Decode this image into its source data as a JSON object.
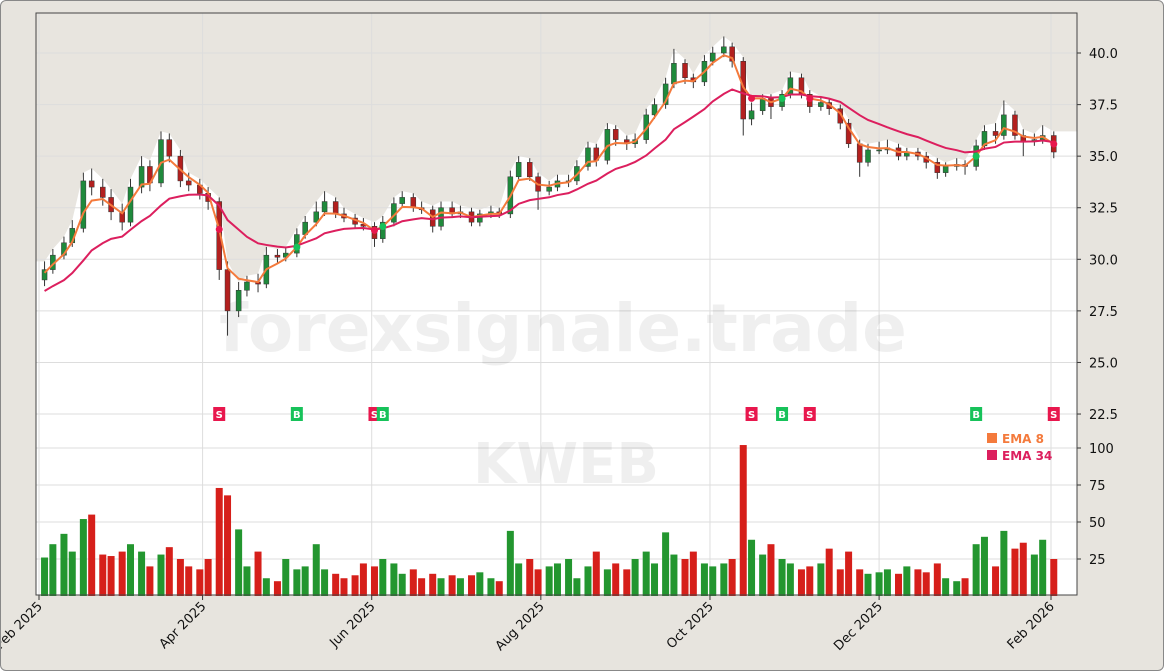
{
  "watermark": {
    "site": "forexsignale.trade",
    "symbol": "KWEB"
  },
  "colors": {
    "ema8": "#f47a3c",
    "ema34": "#dc1f5e",
    "up": "#1f8a3c",
    "down": "#b3201f",
    "vol_up": "#23962f",
    "vol_down": "#d61f1a",
    "buy": "#17c25a",
    "sell": "#e8174d"
  },
  "legend": [
    {
      "label": "EMA 8",
      "color": "#f47a3c",
      "period": 8
    },
    {
      "label": "EMA 34",
      "color": "#dc1f5e",
      "period": 34
    }
  ],
  "chart_data": {
    "type": "candlestick",
    "price_axis": {
      "ticks": [
        "22.5",
        "25.0",
        "27.5",
        "30.0",
        "32.5",
        "35.0",
        "37.5",
        "40.0"
      ],
      "range": [
        22.5,
        40.7
      ],
      "side": "right"
    },
    "volume_axis": {
      "ticks": [
        "25",
        "50",
        "75",
        "100"
      ],
      "range": [
        0,
        110
      ],
      "side": "right"
    },
    "x_ticks": [
      {
        "date": "2025-02-01",
        "label": "Feb 2025"
      },
      {
        "date": "2025-04-01",
        "label": "Apr 2025"
      },
      {
        "date": "2025-06-01",
        "label": "Jun 2025"
      },
      {
        "date": "2025-08-01",
        "label": "Aug 2025"
      },
      {
        "date": "2025-10-01",
        "label": "Oct 2025"
      },
      {
        "date": "2025-12-01",
        "label": "Dec 2025"
      },
      {
        "date": "2026-02-01",
        "label": "Feb 2026"
      }
    ],
    "grid": true,
    "legend_placement": "lower-right",
    "candles_columns": [
      "date",
      "open",
      "high",
      "low",
      "close",
      "volume"
    ],
    "candles": [
      [
        "2025-02-03",
        29.0,
        29.9,
        28.7,
        29.5,
        26
      ],
      [
        "2025-02-06",
        29.5,
        30.5,
        29.3,
        30.2,
        35
      ],
      [
        "2025-02-10",
        30.2,
        31.1,
        30.0,
        30.8,
        42
      ],
      [
        "2025-02-13",
        30.8,
        31.9,
        30.6,
        31.5,
        30
      ],
      [
        "2025-02-17",
        31.5,
        34.2,
        31.3,
        33.8,
        52
      ],
      [
        "2025-02-20",
        33.8,
        34.4,
        33.1,
        33.5,
        55
      ],
      [
        "2025-02-24",
        33.5,
        33.9,
        32.6,
        33.0,
        28
      ],
      [
        "2025-02-27",
        33.0,
        33.4,
        31.9,
        32.3,
        27
      ],
      [
        "2025-03-03",
        32.3,
        32.7,
        31.4,
        31.8,
        30
      ],
      [
        "2025-03-06",
        31.8,
        33.9,
        31.6,
        33.5,
        35
      ],
      [
        "2025-03-10",
        33.5,
        35.0,
        33.2,
        34.5,
        30
      ],
      [
        "2025-03-13",
        34.5,
        34.8,
        33.3,
        33.7,
        20
      ],
      [
        "2025-03-17",
        33.7,
        36.2,
        33.5,
        35.8,
        28
      ],
      [
        "2025-03-20",
        35.8,
        36.1,
        34.7,
        35.0,
        33
      ],
      [
        "2025-03-24",
        35.0,
        35.3,
        33.5,
        33.8,
        25
      ],
      [
        "2025-03-27",
        33.8,
        34.2,
        33.3,
        33.6,
        20
      ],
      [
        "2025-03-31",
        33.6,
        33.9,
        32.9,
        33.2,
        18
      ],
      [
        "2025-04-03",
        33.2,
        33.5,
        32.4,
        32.8,
        25
      ],
      [
        "2025-04-07",
        32.8,
        33.0,
        29.0,
        29.5,
        73
      ],
      [
        "2025-04-10",
        29.5,
        29.9,
        26.3,
        27.5,
        68
      ],
      [
        "2025-04-14",
        27.5,
        28.9,
        27.2,
        28.5,
        45
      ],
      [
        "2025-04-17",
        28.5,
        29.2,
        28.2,
        28.9,
        20
      ],
      [
        "2025-04-21",
        28.9,
        29.3,
        28.4,
        28.8,
        30
      ],
      [
        "2025-04-24",
        28.8,
        30.6,
        28.6,
        30.2,
        12
      ],
      [
        "2025-04-28",
        30.2,
        30.5,
        29.8,
        30.1,
        10
      ],
      [
        "2025-05-01",
        30.1,
        30.6,
        29.9,
        30.3,
        25
      ],
      [
        "2025-05-05",
        30.3,
        31.5,
        30.1,
        31.2,
        18
      ],
      [
        "2025-05-08",
        31.2,
        32.1,
        31.0,
        31.8,
        20
      ],
      [
        "2025-05-12",
        31.8,
        32.8,
        31.6,
        32.3,
        35
      ],
      [
        "2025-05-15",
        32.3,
        33.3,
        32.1,
        32.8,
        18
      ],
      [
        "2025-05-19",
        32.8,
        33.0,
        32.0,
        32.2,
        15
      ],
      [
        "2025-05-22",
        32.2,
        32.5,
        31.8,
        32.0,
        12
      ],
      [
        "2025-05-26",
        32.0,
        32.2,
        31.5,
        31.7,
        14
      ],
      [
        "2025-05-29",
        31.7,
        32.0,
        31.4,
        31.6,
        22
      ],
      [
        "2025-06-02",
        31.6,
        31.8,
        30.6,
        31.0,
        20
      ],
      [
        "2025-06-05",
        31.0,
        32.1,
        30.8,
        31.8,
        25
      ],
      [
        "2025-06-09",
        31.8,
        33.0,
        31.6,
        32.7,
        22
      ],
      [
        "2025-06-12",
        32.7,
        33.3,
        32.5,
        33.0,
        15
      ],
      [
        "2025-06-16",
        33.0,
        33.2,
        32.3,
        32.5,
        18
      ],
      [
        "2025-06-19",
        32.5,
        32.8,
        32.2,
        32.4,
        12
      ],
      [
        "2025-06-23",
        32.4,
        32.6,
        31.3,
        31.6,
        15
      ],
      [
        "2025-06-26",
        31.6,
        32.8,
        31.4,
        32.5,
        12
      ],
      [
        "2025-06-30",
        32.5,
        32.8,
        32.0,
        32.2,
        14
      ],
      [
        "2025-07-03",
        32.2,
        32.6,
        32.0,
        32.3,
        12
      ],
      [
        "2025-07-07",
        32.3,
        32.5,
        31.6,
        31.8,
        14
      ],
      [
        "2025-07-10",
        31.8,
        32.4,
        31.6,
        32.2,
        16
      ],
      [
        "2025-07-14",
        32.2,
        32.6,
        32.0,
        32.3,
        12
      ],
      [
        "2025-07-17",
        32.3,
        32.5,
        32.0,
        32.2,
        10
      ],
      [
        "2025-07-21",
        32.2,
        34.3,
        32.0,
        34.0,
        44
      ],
      [
        "2025-07-24",
        34.0,
        35.0,
        33.8,
        34.7,
        22
      ],
      [
        "2025-07-28",
        34.7,
        34.9,
        33.8,
        34.0,
        25
      ],
      [
        "2025-07-31",
        34.0,
        34.2,
        32.4,
        33.3,
        18
      ],
      [
        "2025-08-04",
        33.3,
        33.8,
        33.1,
        33.5,
        20
      ],
      [
        "2025-08-07",
        33.5,
        34.1,
        33.3,
        33.8,
        22
      ],
      [
        "2025-08-11",
        33.8,
        34.1,
        33.5,
        33.8,
        25
      ],
      [
        "2025-08-14",
        33.8,
        34.8,
        33.6,
        34.5,
        12
      ],
      [
        "2025-08-18",
        34.5,
        35.7,
        34.3,
        35.4,
        20
      ],
      [
        "2025-08-21",
        35.4,
        35.6,
        34.5,
        34.8,
        30
      ],
      [
        "2025-08-25",
        34.8,
        36.6,
        34.6,
        36.3,
        18
      ],
      [
        "2025-08-28",
        36.3,
        36.5,
        35.5,
        35.8,
        22
      ],
      [
        "2025-09-01",
        35.8,
        36.0,
        35.3,
        35.6,
        18
      ],
      [
        "2025-09-04",
        35.6,
        36.1,
        35.4,
        35.8,
        25
      ],
      [
        "2025-09-08",
        35.8,
        37.3,
        35.6,
        37.0,
        30
      ],
      [
        "2025-09-11",
        37.0,
        37.8,
        36.8,
        37.5,
        22
      ],
      [
        "2025-09-15",
        37.5,
        38.8,
        37.3,
        38.5,
        43
      ],
      [
        "2025-09-18",
        38.5,
        40.2,
        38.3,
        39.5,
        28
      ],
      [
        "2025-09-22",
        39.5,
        39.7,
        38.5,
        38.8,
        25
      ],
      [
        "2025-09-25",
        38.8,
        39.0,
        38.3,
        38.6,
        30
      ],
      [
        "2025-09-29",
        38.6,
        39.9,
        38.4,
        39.6,
        22
      ],
      [
        "2025-10-02",
        39.6,
        40.3,
        39.4,
        40.0,
        20
      ],
      [
        "2025-10-06",
        40.0,
        40.8,
        39.8,
        40.3,
        22
      ],
      [
        "2025-10-09",
        40.3,
        40.5,
        39.3,
        39.6,
        25
      ],
      [
        "2025-10-13",
        39.6,
        39.8,
        36.0,
        36.8,
        102
      ],
      [
        "2025-10-16",
        36.8,
        37.6,
        36.5,
        37.2,
        38
      ],
      [
        "2025-10-20",
        37.2,
        38.0,
        37.0,
        37.8,
        28
      ],
      [
        "2025-10-23",
        37.8,
        38.0,
        36.8,
        37.4,
        35
      ],
      [
        "2025-10-27",
        37.4,
        38.2,
        37.2,
        38.0,
        25
      ],
      [
        "2025-10-30",
        38.0,
        39.1,
        37.8,
        38.8,
        22
      ],
      [
        "2025-11-03",
        38.8,
        39.0,
        37.8,
        38.0,
        18
      ],
      [
        "2025-11-06",
        38.0,
        38.2,
        37.1,
        37.4,
        20
      ],
      [
        "2025-11-10",
        37.4,
        37.9,
        37.2,
        37.6,
        22
      ],
      [
        "2025-11-13",
        37.6,
        37.8,
        37.0,
        37.3,
        32
      ],
      [
        "2025-11-17",
        37.3,
        37.5,
        36.3,
        36.6,
        18
      ],
      [
        "2025-11-20",
        36.6,
        36.8,
        35.4,
        35.6,
        30
      ],
      [
        "2025-11-24",
        35.6,
        35.8,
        34.0,
        34.7,
        18
      ],
      [
        "2025-11-27",
        34.7,
        35.6,
        34.5,
        35.3,
        15
      ],
      [
        "2025-12-01",
        35.3,
        35.7,
        35.1,
        35.3,
        16
      ],
      [
        "2025-12-04",
        35.3,
        35.8,
        35.1,
        35.4,
        18
      ],
      [
        "2025-12-08",
        35.4,
        35.6,
        34.8,
        35.0,
        15
      ],
      [
        "2025-12-11",
        35.0,
        35.4,
        34.8,
        35.2,
        20
      ],
      [
        "2025-12-15",
        35.2,
        35.4,
        34.8,
        35.0,
        18
      ],
      [
        "2025-12-18",
        35.0,
        35.2,
        34.4,
        34.7,
        16
      ],
      [
        "2025-12-22",
        34.7,
        34.9,
        33.9,
        34.2,
        22
      ],
      [
        "2025-12-25",
        34.2,
        34.7,
        34.0,
        34.5,
        12
      ],
      [
        "2025-12-29",
        34.5,
        34.9,
        34.3,
        34.6,
        10
      ],
      [
        "2026-01-01",
        34.6,
        34.8,
        34.1,
        34.5,
        12
      ],
      [
        "2026-01-05",
        34.5,
        35.8,
        34.3,
        35.5,
        35
      ],
      [
        "2026-01-08",
        35.5,
        36.5,
        35.3,
        36.2,
        40
      ],
      [
        "2026-01-12",
        36.2,
        36.6,
        35.6,
        36.0,
        20
      ],
      [
        "2026-01-15",
        36.0,
        37.7,
        35.8,
        37.0,
        44
      ],
      [
        "2026-01-19",
        37.0,
        37.2,
        35.8,
        36.0,
        32
      ],
      [
        "2026-01-22",
        36.0,
        36.3,
        35.0,
        35.7,
        36
      ],
      [
        "2026-01-26",
        35.7,
        36.1,
        35.5,
        35.8,
        28
      ],
      [
        "2026-01-29",
        35.8,
        36.5,
        35.6,
        36.0,
        38
      ],
      [
        "2026-02-02",
        36.0,
        36.2,
        34.9,
        35.2,
        25
      ]
    ],
    "signals": [
      {
        "date": "2025-04-07",
        "label": "S"
      },
      {
        "date": "2025-05-05",
        "label": "B"
      },
      {
        "date": "2025-06-02",
        "label": "S"
      },
      {
        "date": "2025-06-05",
        "label": "B"
      },
      {
        "date": "2025-10-16",
        "label": "S"
      },
      {
        "date": "2025-10-27",
        "label": "B"
      },
      {
        "date": "2025-11-06",
        "label": "S"
      },
      {
        "date": "2026-01-05",
        "label": "B"
      },
      {
        "date": "2026-02-02",
        "label": "S"
      }
    ]
  }
}
